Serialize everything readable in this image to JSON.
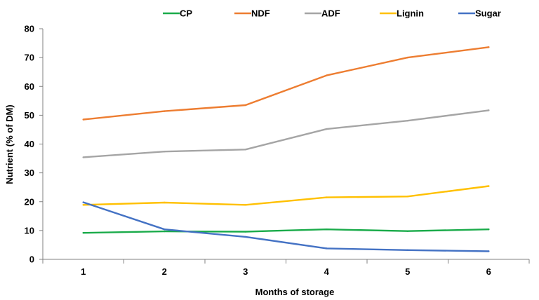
{
  "chart_data": {
    "type": "line",
    "title": "",
    "xlabel": "Months of storage",
    "ylabel": "Nutrient (% of DM)",
    "categories": [
      "1",
      "2",
      "3",
      "4",
      "5",
      "6"
    ],
    "ylim": [
      0,
      80
    ],
    "yticks": [
      "0",
      "10",
      "20",
      "30",
      "40",
      "50",
      "60",
      "70",
      "80"
    ],
    "grid": false,
    "legend_position": "top",
    "series": [
      {
        "name": "CP",
        "color": "#1aab4a",
        "values": [
          9.2,
          9.7,
          9.6,
          10.4,
          9.8,
          10.4
        ]
      },
      {
        "name": "NDF",
        "color": "#ed7d31",
        "values": [
          48.5,
          51.4,
          53.5,
          63.8,
          70.0,
          73.6
        ]
      },
      {
        "name": "ADF",
        "color": "#a5a5a5",
        "values": [
          35.4,
          37.4,
          38.1,
          45.2,
          48.1,
          51.7
        ]
      },
      {
        "name": "Lignin",
        "color": "#ffc000",
        "values": [
          18.9,
          19.7,
          18.9,
          21.5,
          21.8,
          25.4
        ]
      },
      {
        "name": "Sugar",
        "color": "#4472c4",
        "values": [
          19.8,
          10.4,
          7.8,
          3.8,
          3.2,
          2.8
        ]
      }
    ]
  }
}
